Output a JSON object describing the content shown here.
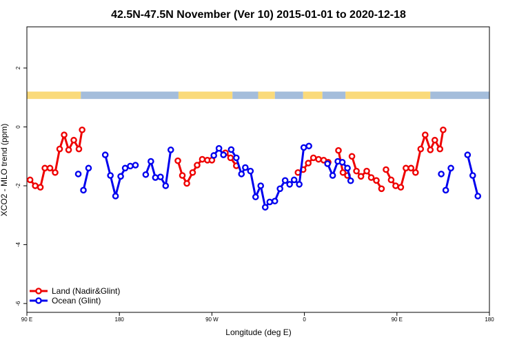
{
  "chart_data": {
    "type": "line",
    "title": "42.5N-47.5N November (Ver 10)   2015-01-01 to 2020-12-18",
    "xlabel": "Longitude (deg E)",
    "ylabel": "XCO2 - MLO trend (ppm)",
    "xlim": [
      90,
      450
    ],
    "ylim": [
      -6.3,
      3.4
    ],
    "x_ticks": [
      {
        "value": 90,
        "label": "90 E"
      },
      {
        "value": 162,
        "label": "180"
      },
      {
        "value": 234,
        "label": "90 W"
      },
      {
        "value": 306,
        "label": "0"
      },
      {
        "value": 378,
        "label": "90 E"
      },
      {
        "value": 450,
        "label": "180"
      }
    ],
    "y_ticks": [
      {
        "value": 2,
        "label": "2"
      },
      {
        "value": 0,
        "label": "0"
      },
      {
        "value": -2,
        "label": "-2"
      },
      {
        "value": -4,
        "label": "-4"
      },
      {
        "value": -6,
        "label": "-6"
      }
    ],
    "surface_band": {
      "y_range": [
        0.95,
        1.2
      ],
      "land_color": "#fada7a",
      "ocean_color": "#a4bddb",
      "segments": [
        {
          "x0": 90,
          "x1": 132,
          "type": "land"
        },
        {
          "x0": 132,
          "x1": 208,
          "type": "ocean"
        },
        {
          "x0": 208,
          "x1": 250,
          "type": "land"
        },
        {
          "x0": 250,
          "x1": 270,
          "type": "ocean"
        },
        {
          "x0": 270,
          "x1": 283,
          "type": "land"
        },
        {
          "x0": 283,
          "x1": 305,
          "type": "ocean"
        },
        {
          "x0": 305,
          "x1": 320,
          "type": "land"
        },
        {
          "x0": 320,
          "x1": 338,
          "type": "ocean"
        },
        {
          "x0": 338,
          "x1": 404,
          "type": "land"
        },
        {
          "x0": 404,
          "x1": 450,
          "type": "ocean"
        }
      ]
    },
    "legend_position": "bottom-left",
    "series": [
      {
        "name": "Land (Nadir&Glint)",
        "color": "#ee0000",
        "segments": [
          [
            [
              92.5,
              -1.8
            ],
            [
              96.5,
              -2.0
            ],
            [
              100.5,
              -2.05
            ],
            [
              104,
              -1.4
            ],
            [
              108,
              -1.4
            ],
            [
              112,
              -1.55
            ],
            [
              115.5,
              -0.75
            ],
            [
              119,
              -0.27
            ],
            [
              122.5,
              -0.78
            ],
            [
              126.5,
              -0.45
            ],
            [
              130.5,
              -0.75
            ],
            [
              133,
              -0.1
            ]
          ],
          [
            [
              207.5,
              -1.15
            ],
            [
              211,
              -1.65
            ],
            [
              214.5,
              -1.92
            ],
            [
              219,
              -1.55
            ],
            [
              222.5,
              -1.3
            ],
            [
              226.5,
              -1.1
            ],
            [
              230.5,
              -1.13
            ],
            [
              234,
              -1.13
            ]
          ],
          [
            [
              244.5,
              -0.88
            ],
            [
              248.5,
              -1.05
            ],
            [
              253,
              -1.32
            ]
          ],
          [
            [
              301,
              -1.55
            ],
            [
              305,
              -1.45
            ],
            [
              309,
              -1.23
            ],
            [
              313,
              -1.05
            ],
            [
              317,
              -1.1
            ],
            [
              321,
              -1.13
            ],
            [
              324.5,
              -1.2
            ]
          ],
          [
            [
              332.5,
              -0.8
            ],
            [
              336,
              -1.55
            ],
            [
              339.5,
              -1.65
            ]
          ],
          [
            [
              343,
              -1.0
            ],
            [
              346.5,
              -1.5
            ],
            [
              350,
              -1.68
            ],
            [
              354.5,
              -1.5
            ],
            [
              358,
              -1.72
            ],
            [
              362,
              -1.82
            ],
            [
              366,
              -2.1
            ]
          ],
          [
            [
              369.5,
              -1.45
            ],
            [
              373.5,
              -1.8
            ],
            [
              377,
              -2.0
            ],
            [
              381,
              -2.05
            ],
            [
              385,
              -1.4
            ],
            [
              389,
              -1.4
            ],
            [
              392.5,
              -1.55
            ],
            [
              396.5,
              -0.75
            ],
            [
              400,
              -0.27
            ],
            [
              404,
              -0.78
            ],
            [
              407.5,
              -0.45
            ],
            [
              411.5,
              -0.75
            ],
            [
              414,
              -0.1
            ]
          ]
        ]
      },
      {
        "name": "Ocean (Glint)",
        "color": "#0000ee",
        "segments": [
          [
            [
              130,
              -1.6
            ]
          ],
          [
            [
              134,
              -2.15
            ],
            [
              138,
              -1.4
            ]
          ],
          [
            [
              151,
              -0.95
            ],
            [
              155,
              -1.65
            ],
            [
              159,
              -2.35
            ],
            [
              163,
              -1.68
            ],
            [
              166.5,
              -1.4
            ],
            [
              170.5,
              -1.33
            ],
            [
              174.5,
              -1.3
            ]
          ],
          [
            [
              182.5,
              -1.62
            ],
            [
              186.5,
              -1.17
            ],
            [
              190,
              -1.72
            ],
            [
              194,
              -1.7
            ],
            [
              198,
              -2.0
            ],
            [
              202,
              -0.78
            ]
          ],
          [
            [
              235.5,
              -0.97
            ],
            [
              239.5,
              -0.73
            ],
            [
              243,
              -0.95
            ]
          ],
          [
            [
              249,
              -0.77
            ],
            [
              253,
              -1.05
            ],
            [
              257,
              -1.6
            ],
            [
              260,
              -1.38
            ],
            [
              264,
              -1.5
            ],
            [
              268,
              -2.38
            ],
            [
              272,
              -2.0
            ],
            [
              275.5,
              -2.73
            ],
            [
              279,
              -2.55
            ],
            [
              283,
              -2.52
            ],
            [
              287,
              -2.1
            ],
            [
              291,
              -1.82
            ],
            [
              294.5,
              -1.95
            ],
            [
              298,
              -1.8
            ],
            [
              302,
              -1.95
            ],
            [
              305.5,
              -0.7
            ],
            [
              309.5,
              -0.65
            ]
          ],
          [
            [
              324,
              -1.25
            ],
            [
              328,
              -1.65
            ],
            [
              332,
              -1.17
            ],
            [
              335.5,
              -1.2
            ],
            [
              339.5,
              -1.4
            ],
            [
              342,
              -1.83
            ]
          ],
          [
            [
              412.5,
              -1.6
            ]
          ],
          [
            [
              416,
              -2.15
            ],
            [
              420,
              -1.4
            ]
          ],
          [
            [
              433,
              -0.95
            ],
            [
              437,
              -1.65
            ],
            [
              441,
              -2.35
            ]
          ]
        ]
      }
    ]
  }
}
